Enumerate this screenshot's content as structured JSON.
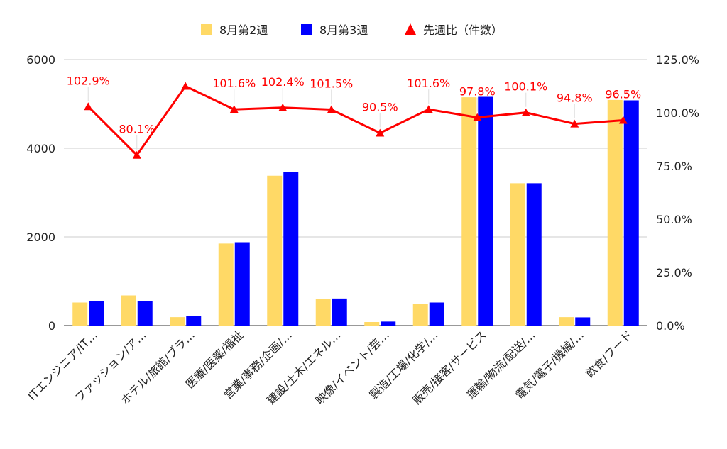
{
  "chart_data": {
    "type": "bar",
    "categories": [
      "ITエンジニア/IT…",
      "ファッション/ア…",
      "ホテル/旅館/ブラ…",
      "医療/医薬/福祉",
      "営業/事務/企画/…",
      "建設/土木/エネル…",
      "映像/イベント/芸…",
      "製造/工場/化学/…",
      "販売/接客/サービス",
      "運輸/物流/配送/…",
      "電気/電子/機械/…",
      "飲食/フード"
    ],
    "series": [
      {
        "name": "8月第2週",
        "type": "bar",
        "axis": "left",
        "color": "#FFD966",
        "values": [
          520,
          680,
          190,
          1850,
          3380,
          600,
          80,
          490,
          5150,
          3210,
          190,
          5090
        ]
      },
      {
        "name": "8月第3週",
        "type": "bar",
        "axis": "left",
        "color": "#0000FF",
        "values": [
          545,
          545,
          215,
          1880,
          3460,
          610,
          90,
          520,
          5160,
          3210,
          185,
          5080
        ]
      },
      {
        "name": "先週比（件数）",
        "type": "line",
        "axis": "right",
        "color": "#FF0000",
        "marker": "triangle",
        "values": [
          102.9,
          80.1,
          112.5,
          101.6,
          102.4,
          101.5,
          90.5,
          101.6,
          97.8,
          100.1,
          94.8,
          96.5
        ],
        "labels": [
          "102.9%",
          "80.1%",
          "",
          "101.6%",
          "102.4%",
          "101.5%",
          "90.5%",
          "101.6%",
          "97.8%",
          "100.1%",
          "94.8%",
          "96.5%"
        ]
      }
    ],
    "left_axis": {
      "ticks": [
        "0",
        "2000",
        "4000",
        "6000"
      ],
      "ylim": [
        0,
        6000
      ]
    },
    "right_axis": {
      "ticks": [
        "0.0%",
        "25.0%",
        "50.0%",
        "75.0%",
        "100.0%",
        "125.0%"
      ],
      "ylim": [
        0,
        125
      ]
    },
    "legend": "top",
    "grid": true
  }
}
